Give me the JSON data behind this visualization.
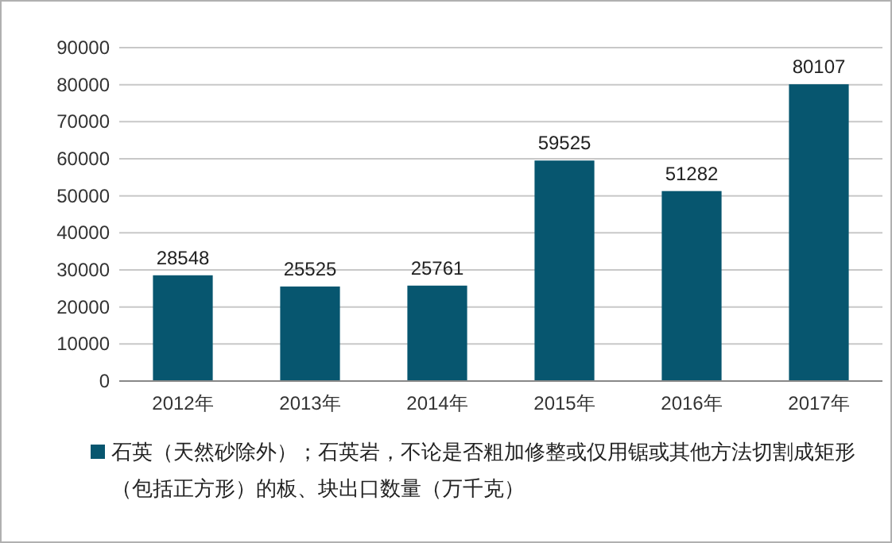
{
  "chart_data": {
    "type": "bar",
    "categories": [
      "2012年",
      "2013年",
      "2014年",
      "2015年",
      "2016年",
      "2017年"
    ],
    "series": [
      {
        "name": "石英（天然砂除外）；石英岩，不论是否粗加修整或仅用锯或其他方法切割成矩形（包括正方形）的板、块出口数量（万千克）",
        "color": "#07566f",
        "values": [
          28548,
          25525,
          25761,
          59525,
          51282,
          80107
        ]
      }
    ],
    "ylim": [
      0,
      90000
    ],
    "yticks": [
      0,
      10000,
      20000,
      30000,
      40000,
      50000,
      60000,
      70000,
      80000,
      90000
    ],
    "grid": "y",
    "data_labels": true,
    "legend": "bottom"
  }
}
